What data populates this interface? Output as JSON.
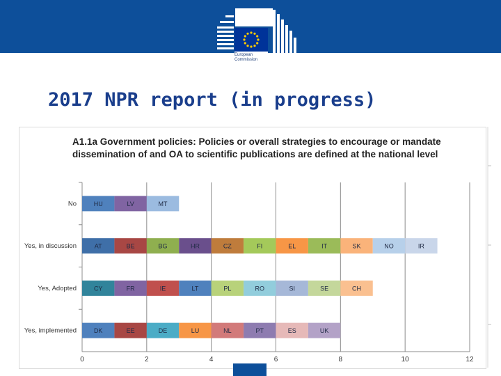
{
  "slide": {
    "title": "2017 NPR report (in progress)",
    "logo_line1": "European",
    "logo_line2": "Commission"
  },
  "colors": {
    "banner": "#0d4f9a",
    "title": "#1a3e8c",
    "eu_flag": "#003399",
    "eu_stars": "#ffcc00"
  },
  "chart_data": {
    "type": "bar",
    "stacked": true,
    "orientation": "horizontal",
    "title": "A1.1a Government policies:  Policies or overall strategies to encourage or mandate dissemination of and OA to scientific publications are defined at the national level",
    "categories": [
      "No",
      "Yes, in discussion",
      "Yes, Adopted",
      "Yes, implemented"
    ],
    "xlim": [
      0,
      12
    ],
    "xticks": [
      0,
      2,
      4,
      6,
      8,
      10,
      12
    ],
    "grid": true,
    "rows": [
      {
        "category": "No",
        "segments": [
          {
            "label": "HU",
            "value": 1,
            "color": "#4f81bd"
          },
          {
            "label": "LV",
            "value": 1,
            "color": "#8064a2"
          },
          {
            "label": "MT",
            "value": 1,
            "color": "#9bbbe0"
          }
        ]
      },
      {
        "category": "Yes, in discussion",
        "segments": [
          {
            "label": "AT",
            "value": 1,
            "color": "#3f6fa8"
          },
          {
            "label": "BE",
            "value": 1,
            "color": "#a84744"
          },
          {
            "label": "BG",
            "value": 1,
            "color": "#8faf4f"
          },
          {
            "label": "HR",
            "value": 1,
            "color": "#6a4f8c"
          },
          {
            "label": "CZ",
            "value": 1,
            "color": "#bf7c3c"
          },
          {
            "label": "FI",
            "value": 1,
            "color": "#a4c95a"
          },
          {
            "label": "EL",
            "value": 1,
            "color": "#f79646"
          },
          {
            "label": "IT",
            "value": 1,
            "color": "#9bbb59"
          },
          {
            "label": "SK",
            "value": 1,
            "color": "#fab37a"
          },
          {
            "label": "NO",
            "value": 1,
            "color": "#b7d0ea"
          },
          {
            "label": "IR",
            "value": 1,
            "color": "#c9d6ea"
          }
        ]
      },
      {
        "category": "Yes, Adopted",
        "segments": [
          {
            "label": "CY",
            "value": 1,
            "color": "#31849b"
          },
          {
            "label": "FR",
            "value": 1,
            "color": "#8064a2"
          },
          {
            "label": "IE",
            "value": 1,
            "color": "#c0504d"
          },
          {
            "label": "LT",
            "value": 1,
            "color": "#4f81bd"
          },
          {
            "label": "PL",
            "value": 1,
            "color": "#b8d27a"
          },
          {
            "label": "RO",
            "value": 1,
            "color": "#92cddc"
          },
          {
            "label": "SI",
            "value": 1,
            "color": "#a6b8d8"
          },
          {
            "label": "SE",
            "value": 1,
            "color": "#c4d79b"
          },
          {
            "label": "CH",
            "value": 1,
            "color": "#fac090"
          }
        ]
      },
      {
        "category": "Yes, implemented",
        "segments": [
          {
            "label": "DK",
            "value": 1,
            "color": "#4f81bd"
          },
          {
            "label": "EE",
            "value": 1,
            "color": "#a84744"
          },
          {
            "label": "DE",
            "value": 1,
            "color": "#4bacc6"
          },
          {
            "label": "LU",
            "value": 1,
            "color": "#f79646"
          },
          {
            "label": "NL",
            "value": 1,
            "color": "#d27a7a"
          },
          {
            "label": "PT",
            "value": 1,
            "color": "#8e7cb0"
          },
          {
            "label": "ES",
            "value": 1,
            "color": "#e6b9b8"
          },
          {
            "label": "UK",
            "value": 1,
            "color": "#b3a2c7"
          }
        ]
      }
    ]
  }
}
